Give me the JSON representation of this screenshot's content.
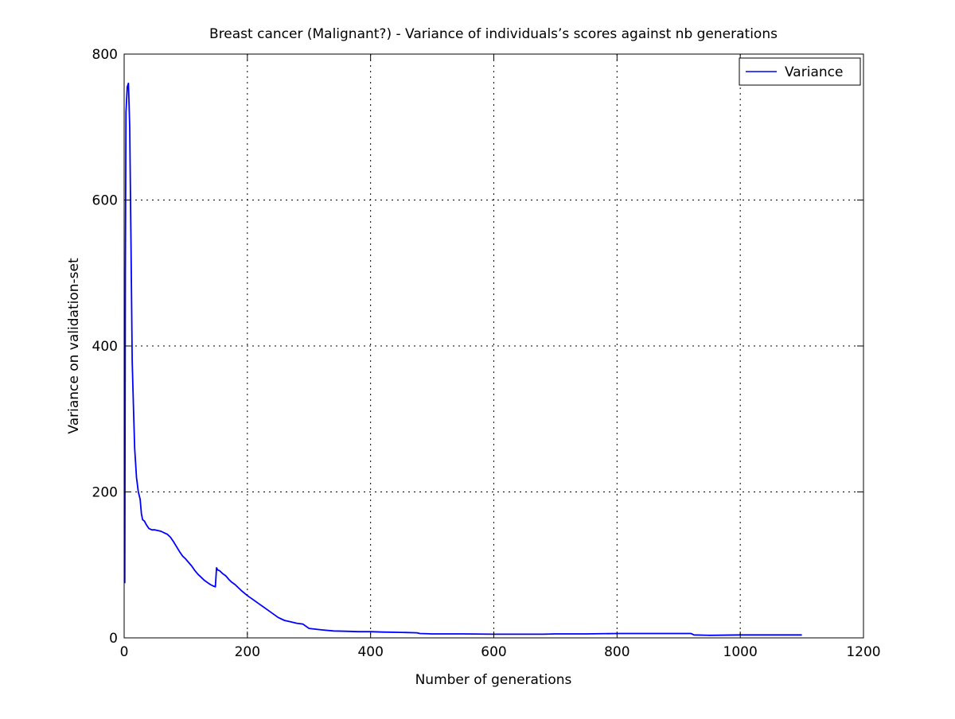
{
  "chart_data": {
    "type": "line",
    "title": "Breast cancer (Malignant?) - Variance of individuals’s scores against nb generations",
    "xlabel": "Number of generations",
    "ylabel": "Variance on validation-set",
    "xlim": [
      0,
      1200
    ],
    "ylim": [
      0,
      800
    ],
    "xticks": [
      0,
      200,
      400,
      600,
      800,
      1000,
      1200
    ],
    "yticks": [
      0,
      200,
      400,
      600,
      800
    ],
    "xtick_labels": [
      "0",
      "200",
      "400",
      "600",
      "800",
      "1000",
      "1200"
    ],
    "ytick_labels": [
      "0",
      "200",
      "400",
      "600",
      "800"
    ],
    "grid": true,
    "legend": {
      "position": "top-right",
      "entries": [
        "Variance"
      ]
    },
    "series": [
      {
        "name": "Variance",
        "color": "#0000ff",
        "x": [
          1,
          2,
          3,
          5,
          7,
          9,
          11,
          13,
          15,
          17,
          20,
          23,
          26,
          28,
          30,
          33,
          36,
          40,
          45,
          50,
          55,
          60,
          65,
          70,
          75,
          80,
          85,
          90,
          95,
          100,
          105,
          110,
          115,
          120,
          125,
          130,
          135,
          140,
          145,
          148,
          150,
          152,
          155,
          160,
          165,
          170,
          175,
          180,
          190,
          200,
          210,
          220,
          230,
          240,
          250,
          260,
          270,
          280,
          290,
          300,
          310,
          320,
          340,
          360,
          380,
          400,
          420,
          450,
          475,
          480,
          500,
          550,
          600,
          650,
          680,
          700,
          750,
          800,
          850,
          900,
          920,
          925,
          950,
          1000,
          1050,
          1100
        ],
        "y": [
          75,
          500,
          720,
          755,
          760,
          700,
          550,
          380,
          320,
          260,
          220,
          200,
          190,
          170,
          162,
          160,
          155,
          150,
          148,
          148,
          147,
          146,
          144,
          142,
          138,
          132,
          125,
          118,
          112,
          108,
          103,
          98,
          92,
          87,
          83,
          79,
          76,
          73,
          71,
          70,
          96,
          93,
          92,
          88,
          85,
          80,
          76,
          73,
          65,
          58,
          52,
          46,
          40,
          34,
          28,
          24,
          22,
          20,
          19,
          13,
          12,
          11,
          9.5,
          9,
          8.5,
          8.5,
          8,
          7.5,
          7,
          6,
          5.5,
          5.5,
          5,
          5,
          5,
          5.5,
          5.5,
          6,
          6,
          6,
          6,
          4,
          3.5,
          4,
          4,
          4
        ]
      }
    ]
  }
}
